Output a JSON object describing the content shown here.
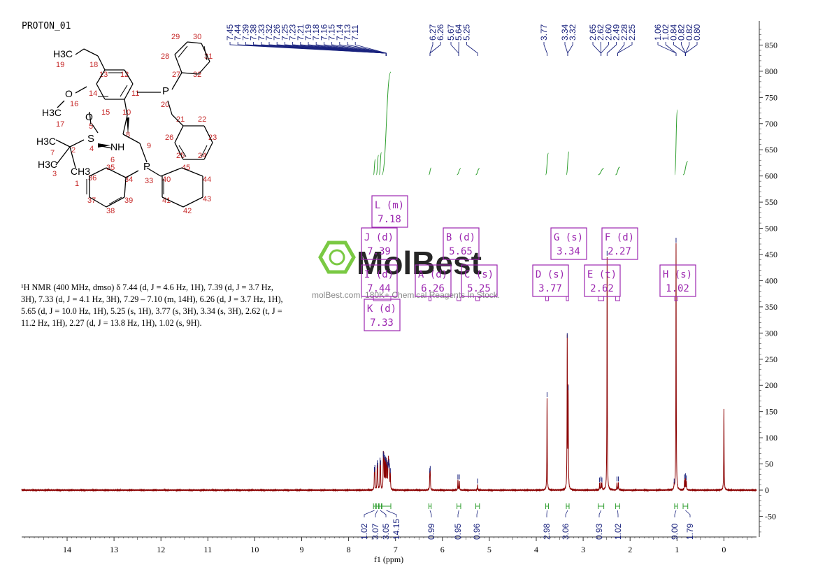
{
  "spectrum_title": "PROTON_01",
  "nmr_description": {
    "lines": [
      "¹H NMR (400 MHz, dmso) δ 7.44 (d, J = 4.6 Hz, 1H), 7.39 (d, J = 3.7 Hz,",
      "3H), 7.33 (d, J = 4.1 Hz, 3H), 7.29 – 7.10 (m, 14H), 6.26 (d, J = 3.7 Hz, 1H),",
      "5.65 (d, J = 10.0 Hz, 1H), 5.25 (s, 1H), 3.77 (s, 3H), 3.34 (s, 3H), 2.62 (t, J =",
      "11.2 Hz, 1H), 2.27 (d, J = 13.8 Hz, 1H), 1.02 (s, 9H)."
    ]
  },
  "watermark": {
    "brand": "MolBest",
    "tagline": "molBest.com, 180K+ Chemical Reagents In Stock."
  },
  "structure": {
    "labels": [
      "H3C",
      "19",
      "18",
      "13",
      "12",
      "O",
      "14",
      "11",
      "P",
      "20",
      "27",
      "28",
      "29",
      "30",
      "31",
      "32",
      "O",
      "16",
      "H3C",
      "17",
      "15",
      "10",
      "O",
      "5",
      "S",
      "4",
      "NH",
      "6",
      "8",
      "9",
      "21",
      "22",
      "23",
      "26",
      "25",
      "24",
      "H3C",
      "7",
      "2",
      "H3C",
      "3",
      "CH3",
      "1",
      "35",
      "36",
      "34",
      "33",
      "P",
      "40",
      "45",
      "44",
      "43",
      "42",
      "41",
      "37",
      "38",
      "39"
    ]
  },
  "colors": {
    "spectrum": "#8b0000",
    "axis": "#333333",
    "peak_labels": "#1a237e",
    "integral_curve": "#2e9e2e",
    "integral_labels": "#1a237e",
    "multiplet_box": "#9c27b0",
    "structure_atom": "#000000",
    "structure_number": "#c62828",
    "watermark_green": "#7ac943"
  },
  "chart_data": {
    "type": "line",
    "xlabel": "f1 (ppm)",
    "xlim": [
      15,
      -0.8
    ],
    "ylim": [
      -85,
      890
    ],
    "x_ticks": [
      14,
      13,
      12,
      11,
      10,
      9,
      8,
      7,
      6,
      5,
      4,
      3,
      2,
      1,
      0
    ],
    "y_ticks": [
      -50,
      0,
      50,
      100,
      150,
      200,
      250,
      300,
      350,
      400,
      450,
      500,
      550,
      600,
      650,
      700,
      750,
      800,
      850
    ],
    "peak_labels": [
      {
        "group": "aromatic",
        "values": [
          "7.45",
          "7.44",
          "7.39",
          "7.38",
          "7.33",
          "7.32",
          "7.26",
          "7.25",
          "7.23",
          "7.21",
          "7.19",
          "7.18",
          "7.16",
          "7.15",
          "7.14",
          "7.13",
          "7.11"
        ],
        "converge_to": 7.2
      },
      {
        "group": "g6",
        "values": [
          "6.27",
          "6.26"
        ],
        "converge_to": 6.265
      },
      {
        "group": "g5",
        "values": [
          "5.67",
          "5.64",
          "5.25"
        ],
        "converge_to": [
          5.655,
          5.655,
          5.25
        ]
      },
      {
        "group": "g37",
        "values": [
          "3.77"
        ],
        "converge_to": 3.77
      },
      {
        "group": "g33",
        "values": [
          "3.34",
          "3.32"
        ],
        "converge_to": 3.33
      },
      {
        "group": "g26",
        "values": [
          "2.65",
          "2.62",
          "2.60",
          "2.49",
          "2.28",
          "2.25"
        ],
        "converge_to": [
          2.62,
          2.62,
          2.62,
          2.49,
          2.265,
          2.265
        ]
      },
      {
        "group": "g10",
        "values": [
          "1.06",
          "1.02",
          "0.84",
          "0.82",
          "0.82",
          "0.80"
        ],
        "converge_to": [
          1.02,
          1.02,
          0.82,
          0.82,
          0.82,
          0.82
        ]
      }
    ],
    "peaks": [
      {
        "x": 7.45,
        "h": 32
      },
      {
        "x": 7.44,
        "h": 36
      },
      {
        "x": 7.39,
        "h": 45
      },
      {
        "x": 7.38,
        "h": 40
      },
      {
        "x": 7.33,
        "h": 50
      },
      {
        "x": 7.32,
        "h": 45
      },
      {
        "x": 7.26,
        "h": 62
      },
      {
        "x": 7.25,
        "h": 58
      },
      {
        "x": 7.23,
        "h": 55
      },
      {
        "x": 7.21,
        "h": 52
      },
      {
        "x": 7.19,
        "h": 48
      },
      {
        "x": 7.18,
        "h": 44
      },
      {
        "x": 7.16,
        "h": 40
      },
      {
        "x": 7.15,
        "h": 46
      },
      {
        "x": 7.14,
        "h": 42
      },
      {
        "x": 7.13,
        "h": 38
      },
      {
        "x": 7.11,
        "h": 30
      },
      {
        "x": 6.27,
        "h": 30
      },
      {
        "x": 6.26,
        "h": 34
      },
      {
        "x": 5.67,
        "h": 18
      },
      {
        "x": 5.64,
        "h": 18
      },
      {
        "x": 5.25,
        "h": 10
      },
      {
        "x": 3.77,
        "h": 175
      },
      {
        "x": 3.34,
        "h": 288
      },
      {
        "x": 3.32,
        "h": 188
      },
      {
        "x": 2.65,
        "h": 12
      },
      {
        "x": 2.62,
        "h": 14
      },
      {
        "x": 2.6,
        "h": 12
      },
      {
        "x": 2.49,
        "h": 445
      },
      {
        "x": 2.28,
        "h": 14
      },
      {
        "x": 2.25,
        "h": 14
      },
      {
        "x": 1.06,
        "h": 10
      },
      {
        "x": 1.02,
        "h": 470
      },
      {
        "x": 0.84,
        "h": 18
      },
      {
        "x": 0.82,
        "h": 20
      },
      {
        "x": 0.8,
        "h": 16
      },
      {
        "x": 0.0,
        "h": 155
      }
    ],
    "integrals": [
      {
        "range": [
          7.47,
          7.43
        ],
        "value": "1.02"
      },
      {
        "range": [
          7.41,
          7.36
        ],
        "value": "3.07"
      },
      {
        "range": [
          7.35,
          7.3
        ],
        "value": "3.05"
      },
      {
        "range": [
          7.29,
          7.1
        ],
        "value": "14.15"
      },
      {
        "range": [
          6.29,
          6.24
        ],
        "value": "0.99"
      },
      {
        "range": [
          5.69,
          5.61
        ],
        "value": "0.95"
      },
      {
        "range": [
          5.29,
          5.21
        ],
        "value": "0.96"
      },
      {
        "range": [
          3.8,
          3.74
        ],
        "value": "2.98"
      },
      {
        "range": [
          3.36,
          3.3
        ],
        "value": "3.06"
      },
      {
        "range": [
          2.68,
          2.56
        ],
        "value": "0.93"
      },
      {
        "range": [
          2.31,
          2.22
        ],
        "value": "1.02"
      },
      {
        "range": [
          1.05,
          0.99
        ],
        "value": "9.00"
      },
      {
        "range": [
          0.87,
          0.77
        ],
        "value": "1.79"
      }
    ],
    "multiplets": [
      {
        "letter": "L",
        "kind": "(m)",
        "shift": "7.18"
      },
      {
        "letter": "J",
        "kind": "(d)",
        "shift": "7.39"
      },
      {
        "letter": "I",
        "kind": "(d)",
        "shift": "7.44"
      },
      {
        "letter": "K",
        "kind": "(d)",
        "shift": "7.33"
      },
      {
        "letter": "B",
        "kind": "(d)",
        "shift": "5.65"
      },
      {
        "letter": "A",
        "kind": "(d)",
        "shift": "6.26"
      },
      {
        "letter": "C",
        "kind": "(s)",
        "shift": "5.25"
      },
      {
        "letter": "D",
        "kind": "(s)",
        "shift": "3.77"
      },
      {
        "letter": "G",
        "kind": "(s)",
        "shift": "3.34"
      },
      {
        "letter": "E",
        "kind": "(t)",
        "shift": "2.62"
      },
      {
        "letter": "F",
        "kind": "(d)",
        "shift": "2.27"
      },
      {
        "letter": "H",
        "kind": "(s)",
        "shift": "1.02"
      }
    ]
  }
}
